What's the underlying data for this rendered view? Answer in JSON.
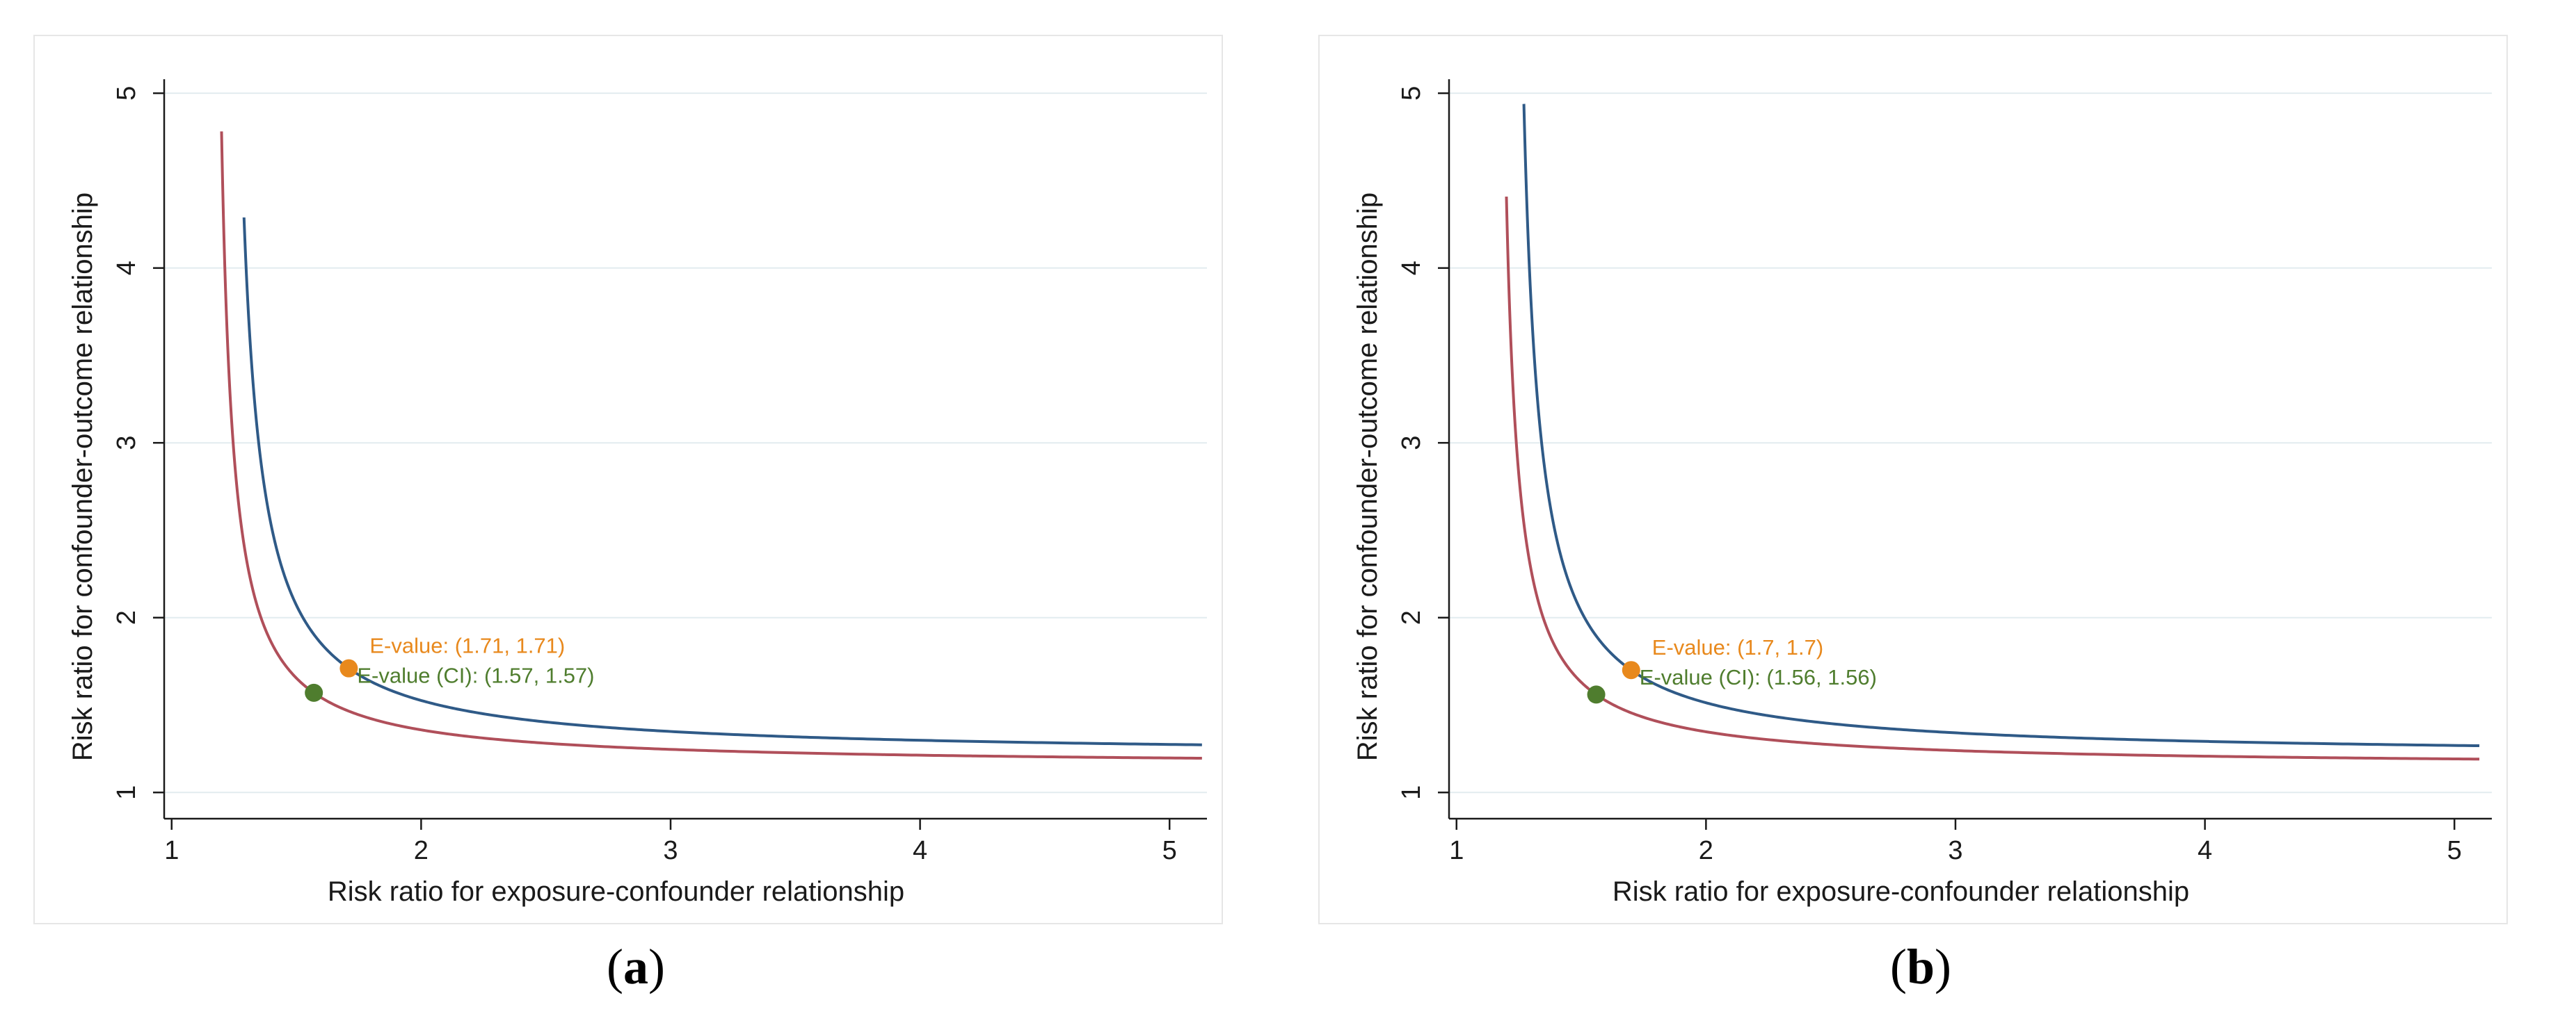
{
  "colors": {
    "upper_curve": "#2f5a87",
    "lower_curve": "#b04f5a",
    "point_estimate": "#e8891d",
    "ci_estimate": "#4f7d2e",
    "grid": "#e2ecef",
    "axis": "#1a1a1a"
  },
  "chart_data": [
    {
      "type": "line",
      "panel_label": "a",
      "xlabel": "Risk ratio for exposure-confounder relationship",
      "ylabel": "Risk ratio for confounder-outcome relationship",
      "xlim": [
        0.97,
        5.15
      ],
      "ylim": [
        0.85,
        5.08
      ],
      "x_ticks": [
        1,
        2,
        3,
        4,
        5
      ],
      "y_ticks": [
        1,
        2,
        3,
        4,
        5
      ],
      "grid": "horizontal",
      "series": [
        {
          "color_key": "upper_curve",
          "curve_constant": 1.71,
          "x_start": 1.29,
          "x_end": 5.13
        },
        {
          "color_key": "lower_curve",
          "curve_constant": 1.57,
          "x_start": 1.2,
          "x_end": 5.13
        }
      ],
      "annotations": [
        {
          "x": 1.71,
          "y": 1.71,
          "color_key": "point_estimate",
          "label": "E-value: (1.71, 1.71)"
        },
        {
          "x": 1.57,
          "y": 1.57,
          "color_key": "ci_estimate",
          "label": "E-value (CI): (1.57, 1.57)"
        }
      ]
    },
    {
      "type": "line",
      "panel_label": "b",
      "xlabel": "Risk ratio for exposure-confounder relationship",
      "ylabel": "Risk ratio for confounder-outcome relationship",
      "xlim": [
        0.97,
        5.15
      ],
      "ylim": [
        0.85,
        5.08
      ],
      "x_ticks": [
        1,
        2,
        3,
        4,
        5
      ],
      "y_ticks": [
        1,
        2,
        3,
        4,
        5
      ],
      "grid": "horizontal",
      "series": [
        {
          "color_key": "upper_curve",
          "curve_constant": 1.7,
          "x_start": 1.27,
          "x_end": 5.1
        },
        {
          "color_key": "lower_curve",
          "curve_constant": 1.56,
          "x_start": 1.2,
          "x_end": 5.1
        }
      ],
      "annotations": [
        {
          "x": 1.7,
          "y": 1.7,
          "color_key": "point_estimate",
          "label": "E-value: (1.7, 1.7)"
        },
        {
          "x": 1.56,
          "y": 1.56,
          "color_key": "ci_estimate",
          "label": "E-value (CI): (1.56, 1.56)"
        }
      ]
    }
  ],
  "captions": {
    "a": "a",
    "b": "b"
  }
}
